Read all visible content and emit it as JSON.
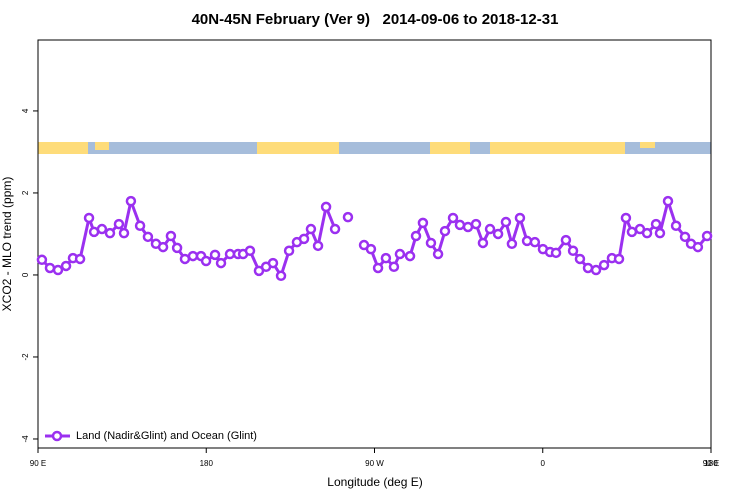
{
  "chart_data": {
    "type": "line",
    "title": "40N-45N February (Ver 9)   2014-09-06 to 2018-12-31",
    "x_label": "Longitude (deg E)",
    "y_label": "XCO2 - MLO trend (ppm)",
    "xlim": [
      90,
      450
    ],
    "xticks": [
      {
        "value": 90,
        "label": "90 E"
      },
      180,
      {
        "value": 270,
        "label": "90 W"
      },
      {
        "value": 360,
        "label": "0"
      },
      {
        "value": 450,
        "label": "90 E"
      },
      {
        "value": 540,
        "label": "180"
      }
    ],
    "ylim": [
      -4.22,
      5.73
    ],
    "yticks": [
      -4,
      -2,
      0,
      2,
      4
    ],
    "grid": false,
    "legend_position": "bottom-left",
    "x": [
      92.1,
      96.4,
      100.7,
      105.0,
      108.7,
      112.5,
      117.3,
      120.0,
      124.2,
      128.5,
      133.3,
      136.0,
      139.7,
      144.6,
      148.8,
      153.1,
      156.9,
      161.1,
      164.4,
      168.6,
      172.9,
      177.2,
      179.9,
      184.7,
      187.9,
      192.7,
      197.0,
      199.7,
      203.4,
      208.2,
      212.0,
      215.7,
      220.0,
      224.3,
      228.5,
      232.3,
      236.0,
      239.8,
      244.1,
      248.9,
      252.3,
      255.8,
      260.1,
      264.4,
      268.1,
      271.9,
      276.1,
      280.4,
      283.6,
      289.0,
      292.2,
      295.9,
      300.2,
      304.0,
      307.7,
      312.0,
      315.7,
      320.0,
      324.3,
      328.0,
      331.8,
      336.1,
      340.3,
      343.5,
      347.8,
      351.6,
      355.8,
      360.1,
      363.9,
      367.1,
      372.4,
      376.2,
      379.9,
      384.2,
      388.5,
      392.8,
      397.0,
      400.8,
      404.5,
      407.7,
      412.0,
      415.8,
      420.6,
      422.7,
      427.0,
      431.3,
      436.1,
      439.3,
      443.0,
      447.9
    ],
    "series": [
      {
        "name": "Land (Nadir&Glint) and Ocean (Glint)",
        "color": "#9b30f0",
        "values": [
          0.37,
          0.17,
          0.12,
          0.22,
          0.41,
          0.39,
          1.39,
          1.05,
          1.12,
          1.02,
          1.24,
          1.02,
          1.8,
          1.2,
          0.93,
          0.76,
          0.68,
          0.95,
          0.66,
          0.39,
          0.46,
          0.46,
          0.34,
          0.49,
          0.29,
          0.51,
          0.51,
          0.51,
          0.59,
          0.1,
          0.2,
          0.29,
          -0.02,
          0.59,
          0.8,
          0.88,
          1.12,
          0.71,
          1.66,
          1.12,
          null,
          1.41,
          null,
          0.73,
          0.63,
          0.17,
          0.41,
          0.2,
          0.51,
          0.46,
          0.95,
          1.27,
          0.78,
          0.51,
          1.07,
          1.39,
          1.22,
          1.17,
          1.24,
          0.78,
          1.12,
          1.0,
          1.29,
          0.76,
          1.39,
          0.83,
          0.8,
          0.63,
          0.56,
          0.54,
          0.85,
          0.59,
          0.39,
          0.17,
          0.12,
          0.24,
          0.41,
          0.39,
          1.39,
          1.05,
          1.12,
          1.02,
          1.24,
          1.02,
          1.8,
          1.2,
          0.93,
          0.76,
          0.68,
          0.95
        ]
      }
    ]
  }
}
